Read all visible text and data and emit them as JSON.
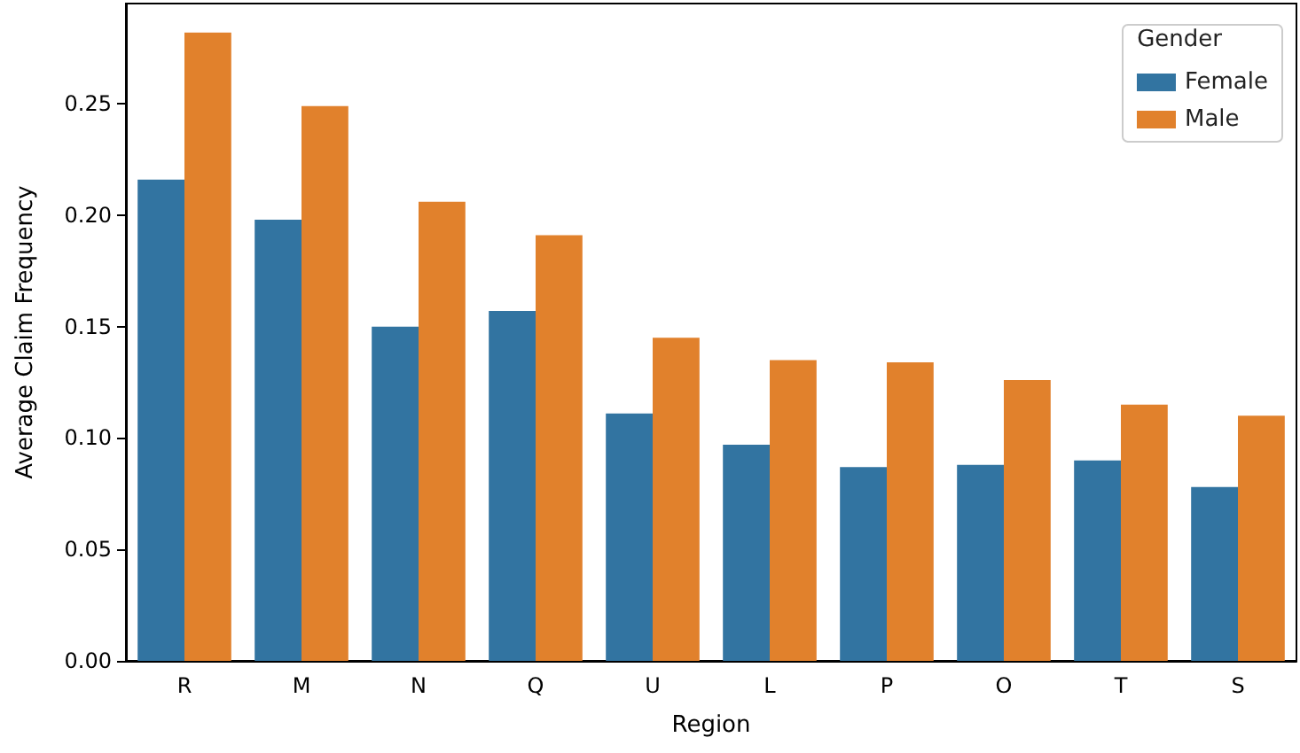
{
  "chart_data": {
    "type": "bar",
    "xlabel": "Region",
    "ylabel": "Average Claim Frequency",
    "legend_title": "Gender",
    "legend": "top right",
    "grid": false,
    "categories": [
      "R",
      "M",
      "N",
      "Q",
      "U",
      "L",
      "P",
      "O",
      "T",
      "S"
    ],
    "series": [
      {
        "name": "Female",
        "color": "#3274a1",
        "values": [
          0.216,
          0.198,
          0.15,
          0.157,
          0.111,
          0.097,
          0.087,
          0.088,
          0.09,
          0.078
        ]
      },
      {
        "name": "Male",
        "color": "#e1812c",
        "values": [
          0.282,
          0.249,
          0.206,
          0.191,
          0.145,
          0.135,
          0.134,
          0.126,
          0.115,
          0.11
        ]
      }
    ],
    "ylim": [
      0,
      0.295
    ],
    "yticks": [
      {
        "value": 0,
        "label": "0.00"
      },
      {
        "value": 0.05,
        "label": "0.05"
      },
      {
        "value": 0.1,
        "label": "0.10"
      },
      {
        "value": 0.15,
        "label": "0.15"
      },
      {
        "value": 0.2,
        "label": "0.20"
      },
      {
        "value": 0.25,
        "label": "0.25"
      }
    ]
  }
}
